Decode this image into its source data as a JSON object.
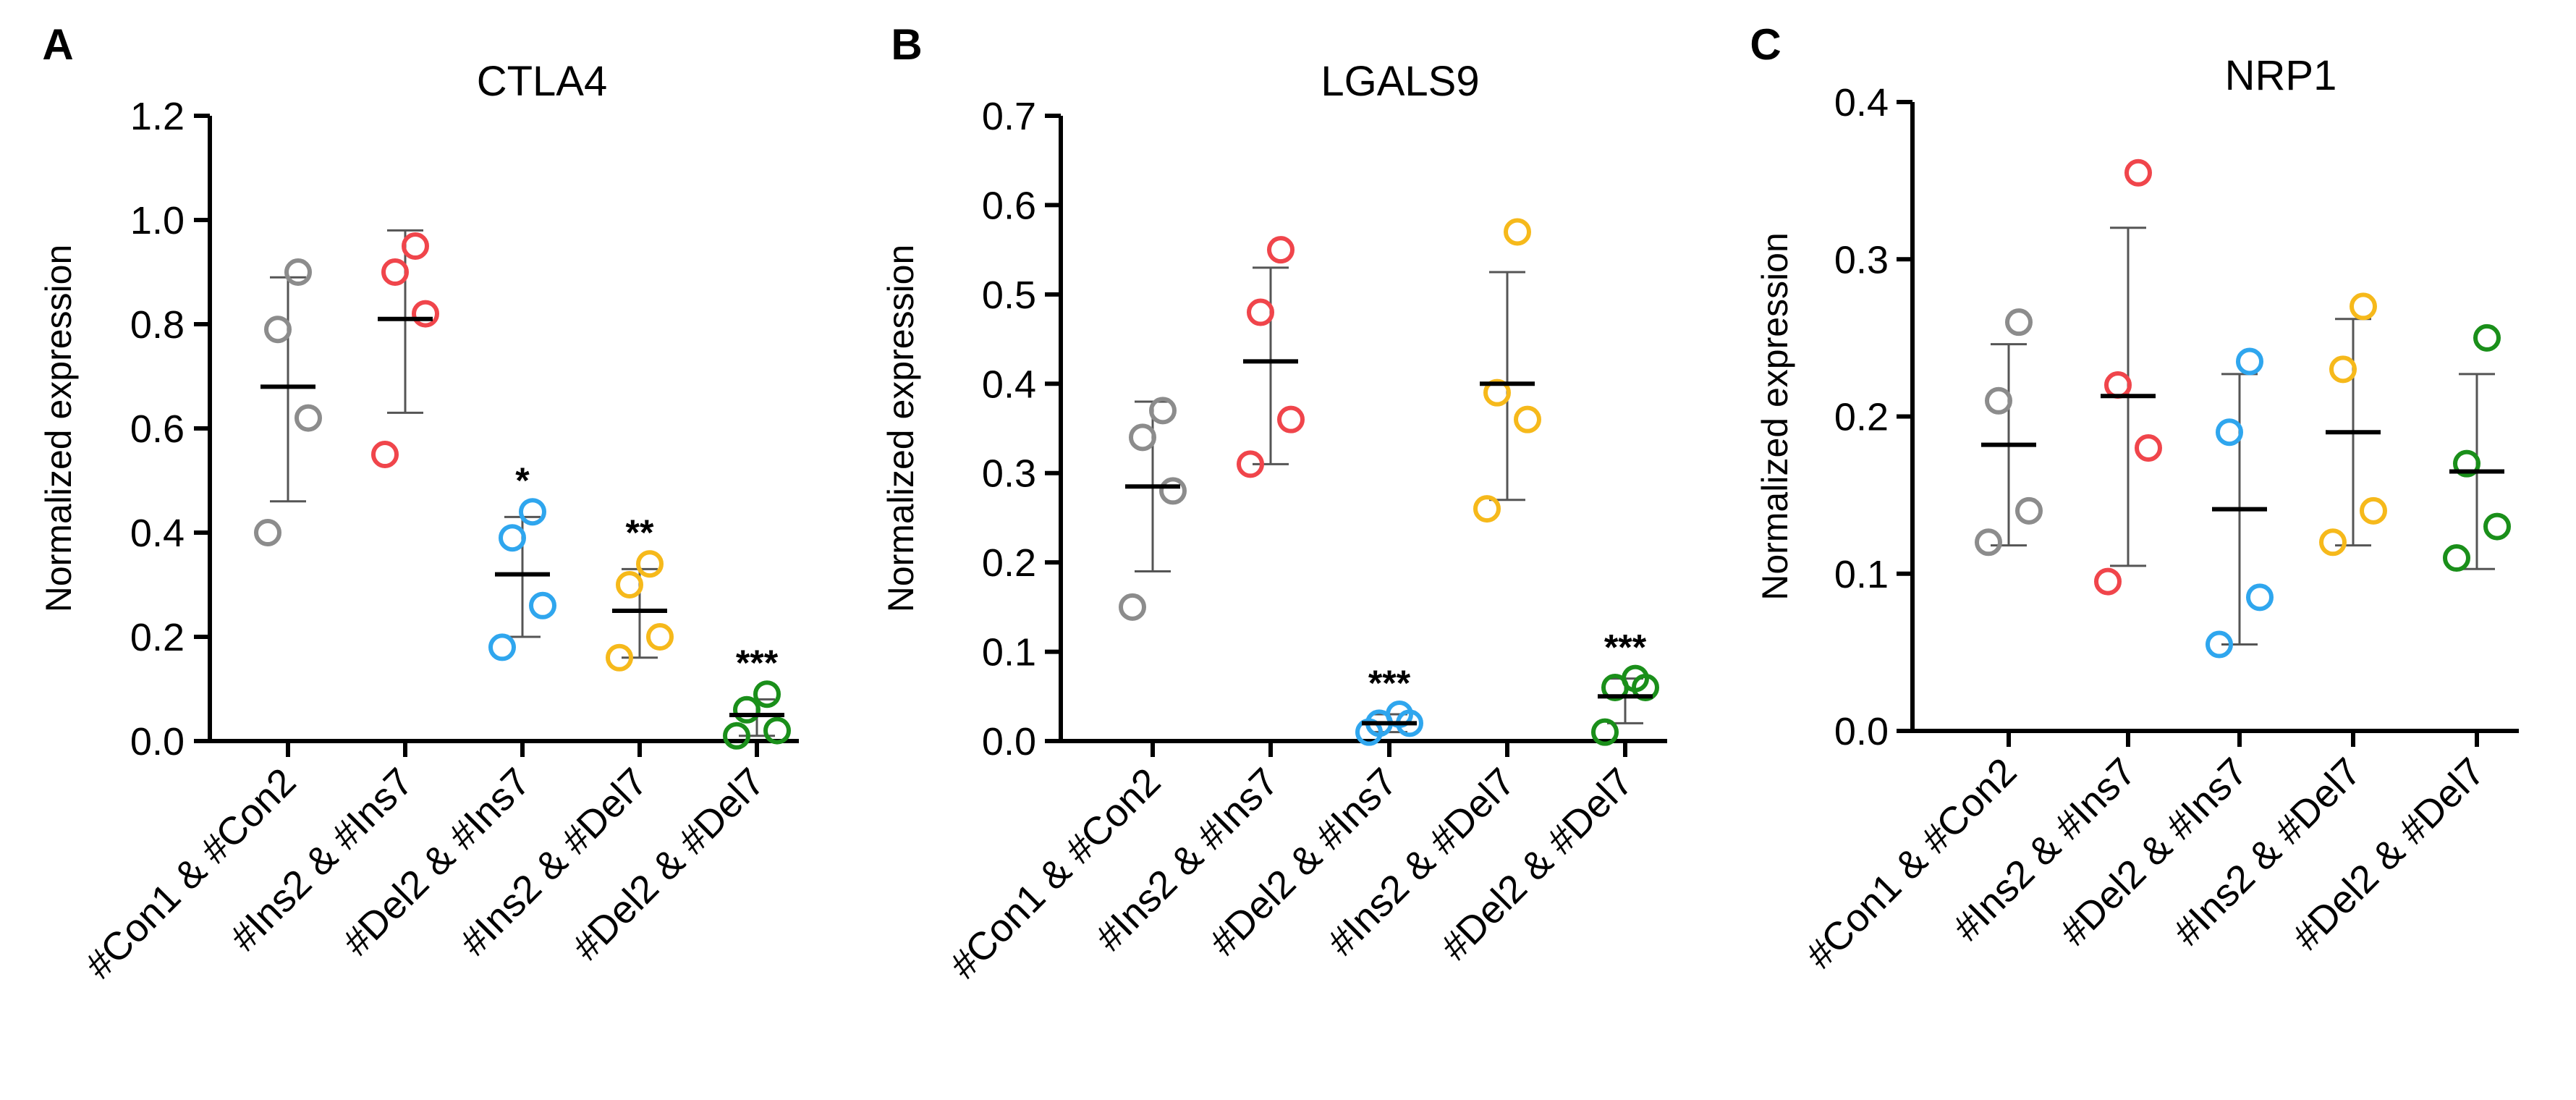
{
  "chart_data": [
    {
      "type": "scatter",
      "panel_label": "A",
      "title": "CTLA4",
      "xlabel": "",
      "ylabel": "Normalized expression",
      "ylim": [
        0,
        1.2
      ],
      "yticks": [
        "0.0",
        "0.2",
        "0.4",
        "0.6",
        "0.8",
        "1.0",
        "1.2"
      ],
      "categories": [
        "#Con1 & #Con2",
        "#Ins2 & #Ins7",
        "#Del2 & #Ins7",
        "#Ins2 & #Del7",
        "#Del2 & #Del7"
      ],
      "series": [
        {
          "points": [
            0.4,
            0.62,
            0.79,
            0.9
          ],
          "mean": 0.68,
          "sd_low": 0.46,
          "sd_high": 0.89,
          "significance": ""
        },
        {
          "points": [
            0.55,
            0.82,
            0.9,
            0.95
          ],
          "mean": 0.81,
          "sd_low": 0.63,
          "sd_high": 0.98,
          "significance": ""
        },
        {
          "points": [
            0.18,
            0.26,
            0.39,
            0.44
          ],
          "mean": 0.32,
          "sd_low": 0.2,
          "sd_high": 0.43,
          "significance": "*"
        },
        {
          "points": [
            0.16,
            0.2,
            0.3,
            0.34
          ],
          "mean": 0.25,
          "sd_low": 0.16,
          "sd_high": 0.33,
          "significance": "**"
        },
        {
          "points": [
            0.01,
            0.02,
            0.06,
            0.09
          ],
          "mean": 0.05,
          "sd_low": 0.01,
          "sd_high": 0.08,
          "significance": "***"
        }
      ]
    },
    {
      "type": "scatter",
      "panel_label": "B",
      "title": "LGALS9",
      "xlabel": "",
      "ylabel": "Normalized expression",
      "ylim": [
        0,
        0.7
      ],
      "yticks": [
        "0.0",
        "0.1",
        "0.2",
        "0.3",
        "0.4",
        "0.5",
        "0.6",
        "0.7"
      ],
      "categories": [
        "#Con1 & #Con2",
        "#Ins2 & #Ins7",
        "#Del2 & #Ins7",
        "#Ins2 & #Del7",
        "#Del2 & #Del7"
      ],
      "series": [
        {
          "points": [
            0.15,
            0.28,
            0.34,
            0.37
          ],
          "mean": 0.285,
          "sd_low": 0.19,
          "sd_high": 0.38,
          "significance": ""
        },
        {
          "points": [
            0.31,
            0.36,
            0.48,
            0.55
          ],
          "mean": 0.425,
          "sd_low": 0.31,
          "sd_high": 0.53,
          "significance": ""
        },
        {
          "points": [
            0.01,
            0.02,
            0.02,
            0.03
          ],
          "mean": 0.02,
          "sd_low": 0.01,
          "sd_high": 0.03,
          "significance": "***"
        },
        {
          "points": [
            0.26,
            0.36,
            0.39,
            0.57
          ],
          "mean": 0.4,
          "sd_low": 0.27,
          "sd_high": 0.525,
          "significance": ""
        },
        {
          "points": [
            0.01,
            0.06,
            0.06,
            0.07
          ],
          "mean": 0.05,
          "sd_low": 0.02,
          "sd_high": 0.07,
          "significance": "***"
        }
      ]
    },
    {
      "type": "scatter",
      "panel_label": "C",
      "title": "NRP1",
      "xlabel": "",
      "ylabel": "Normalized expression",
      "ylim": [
        0,
        0.4
      ],
      "yticks": [
        "0.0",
        "0.1",
        "0.2",
        "0.3",
        "0.4"
      ],
      "categories": [
        "#Con1 & #Con2",
        "#Ins2 & #Ins7",
        "#Del2 & #Ins7",
        "#Ins2 & #Del7",
        "#Del2 & #Del7"
      ],
      "series": [
        {
          "points": [
            0.12,
            0.14,
            0.21,
            0.26
          ],
          "mean": 0.182,
          "sd_low": 0.118,
          "sd_high": 0.246,
          "significance": ""
        },
        {
          "points": [
            0.095,
            0.18,
            0.22,
            0.355
          ],
          "mean": 0.213,
          "sd_low": 0.105,
          "sd_high": 0.32,
          "significance": ""
        },
        {
          "points": [
            0.055,
            0.085,
            0.19,
            0.235
          ],
          "mean": 0.141,
          "sd_low": 0.055,
          "sd_high": 0.227,
          "significance": ""
        },
        {
          "points": [
            0.12,
            0.14,
            0.23,
            0.27
          ],
          "mean": 0.19,
          "sd_low": 0.118,
          "sd_high": 0.262,
          "significance": ""
        },
        {
          "points": [
            0.11,
            0.13,
            0.17,
            0.25
          ],
          "mean": 0.165,
          "sd_low": 0.103,
          "sd_high": 0.227,
          "significance": ""
        }
      ]
    }
  ],
  "colors": {
    "groups": [
      "#8c8c8c",
      "#f0454b",
      "#2fa6ee",
      "#f6b91b",
      "#1a8f1a"
    ],
    "axis": "#000000",
    "errorbar": "#555555",
    "mean": "#000000"
  }
}
